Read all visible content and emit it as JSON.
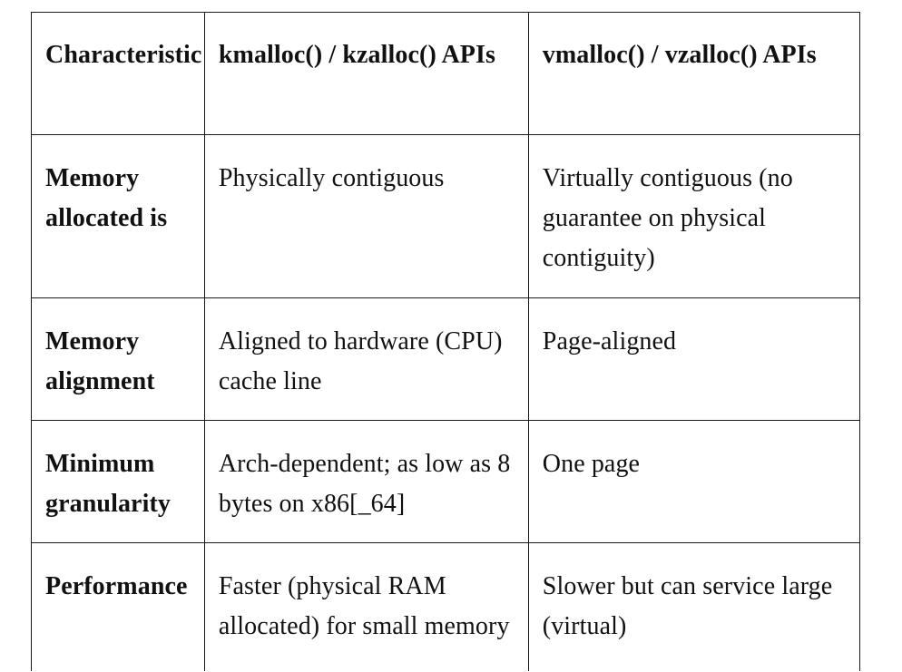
{
  "table": {
    "headers": [
      "Characteristic",
      "kmalloc() / kzalloc() APIs",
      "vmalloc() / vzalloc() APIs"
    ],
    "rows": [
      {
        "label": "Memory allocated is",
        "kmalloc": "Physically contiguous",
        "vmalloc": "Virtually contiguous (no guarantee on physical contiguity)"
      },
      {
        "label": "Memory alignment",
        "kmalloc": "Aligned to hardware (CPU) cache line",
        "vmalloc": "Page-aligned"
      },
      {
        "label": "Minimum granularity",
        "kmalloc": "Arch-dependent; as low as 8 bytes on x86[_64]",
        "vmalloc": "One page"
      },
      {
        "label": "Performance",
        "kmalloc": "Faster (physical RAM allocated) for small memory",
        "vmalloc": "Slower but can service large (virtual)"
      }
    ]
  }
}
